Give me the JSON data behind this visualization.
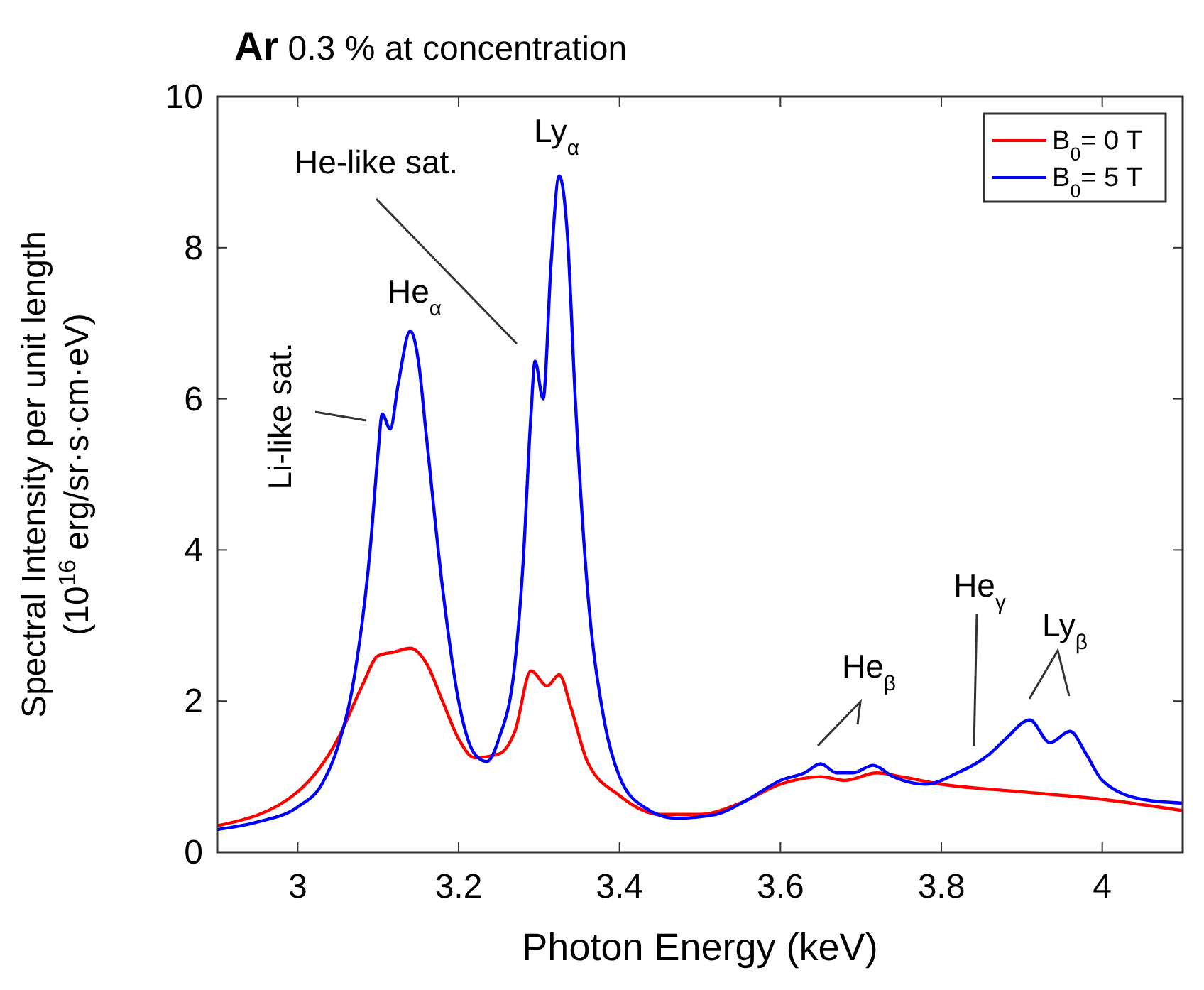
{
  "chart_data": {
    "type": "line",
    "title": "Ar 0.3 % at concentration",
    "xlabel": "Photon Energy (keV)",
    "ylabel": "Spectral Intensity per unit length\n(10$^{16}$ erg/sr·s·cm·eV)",
    "xlim": [
      2.9,
      4.1
    ],
    "xticks": [
      3,
      3.2,
      3.4,
      3.6,
      3.8,
      4
    ],
    "ylim": [
      0,
      10
    ],
    "yticks": [
      0,
      2,
      4,
      6,
      8,
      10
    ],
    "grid": false,
    "legend": "top right",
    "marker": "none",
    "line_style": "solid",
    "series": [
      {
        "name": "B$_{0}$= 0 T",
        "color": "#ff0000",
        "x": [
          2.9,
          3.0,
          3.05,
          3.08,
          3.1,
          3.12,
          3.14,
          3.16,
          3.18,
          3.2,
          3.22,
          3.25,
          3.27,
          3.29,
          3.31,
          3.325,
          3.34,
          3.36,
          3.4,
          3.45,
          3.5,
          3.55,
          3.6,
          3.65,
          3.68,
          3.72,
          3.75,
          3.8,
          3.9,
          4.0,
          4.1
        ],
        "values": [
          0.35,
          0.8,
          1.5,
          2.2,
          2.6,
          2.65,
          2.7,
          2.5,
          2.0,
          1.5,
          1.25,
          1.3,
          1.6,
          2.4,
          2.2,
          2.35,
          1.9,
          1.2,
          0.75,
          0.5,
          0.5,
          0.65,
          0.9,
          1.0,
          0.95,
          1.05,
          1.0,
          0.9,
          0.8,
          0.7,
          0.55
        ]
      },
      {
        "name": "B$_{0}$= 5 T",
        "color": "#0000ff",
        "x": [
          2.9,
          2.95,
          3.0,
          3.03,
          3.05,
          3.07,
          3.09,
          3.1,
          3.105,
          3.115,
          3.125,
          3.14,
          3.15,
          3.16,
          3.18,
          3.2,
          3.22,
          3.235,
          3.25,
          3.27,
          3.28,
          3.29,
          3.295,
          3.305,
          3.315,
          3.325,
          3.335,
          3.345,
          3.36,
          3.38,
          3.4,
          3.43,
          3.47,
          3.52,
          3.56,
          3.6,
          3.63,
          3.65,
          3.67,
          3.69,
          3.715,
          3.74,
          3.78,
          3.82,
          3.86,
          3.88,
          3.91,
          3.935,
          3.96,
          3.98,
          4.0,
          4.05,
          4.1
        ],
        "values": [
          0.3,
          0.4,
          0.6,
          0.9,
          1.4,
          2.3,
          4.0,
          5.3,
          5.8,
          5.6,
          6.2,
          6.9,
          6.5,
          5.5,
          3.5,
          2.0,
          1.3,
          1.2,
          1.5,
          2.5,
          3.8,
          5.8,
          6.5,
          6.0,
          7.8,
          8.95,
          8.2,
          6.0,
          3.5,
          1.8,
          1.0,
          0.6,
          0.45,
          0.5,
          0.7,
          0.95,
          1.05,
          1.17,
          1.05,
          1.05,
          1.15,
          1.0,
          0.9,
          1.05,
          1.3,
          1.5,
          1.75,
          1.45,
          1.6,
          1.3,
          0.95,
          0.7,
          0.65
        ]
      }
    ],
    "annotations": [
      "Li-like sat.",
      "He$_{α}$",
      "He-like sat.",
      "Ly$_{α}$",
      "He$_{β}$",
      "He$_{γ}$",
      "Ly$_{β}$"
    ]
  }
}
